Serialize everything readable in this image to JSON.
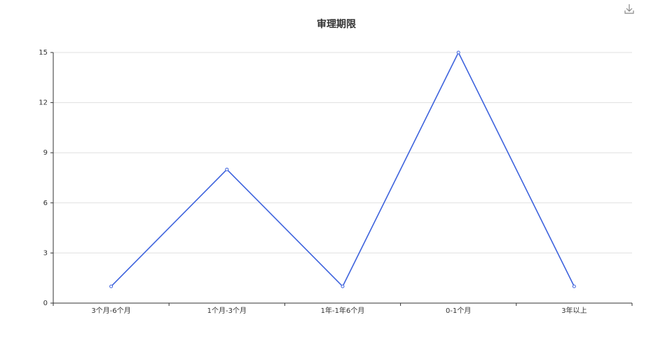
{
  "chart_data": {
    "type": "line",
    "title": "审理期限",
    "categories": [
      "3个月-6个月",
      "1个月-3个月",
      "1年-1年6个月",
      "0-1个月",
      "3年以上"
    ],
    "values": [
      1,
      8,
      1,
      15,
      1
    ],
    "color": "#3e63dd",
    "ylim": [
      0,
      15
    ],
    "yticks": [
      0,
      3,
      6,
      9,
      12,
      15
    ],
    "grid": true
  }
}
